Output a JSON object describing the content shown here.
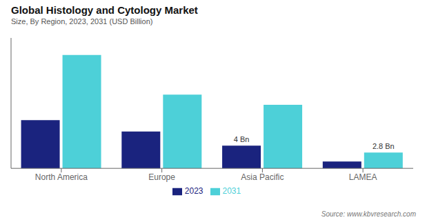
{
  "chart_data": {
    "type": "bar",
    "title": "Global  Histology and Cytology Market",
    "subtitle": "Size, By Region, 2023, 2031 (USD Billion)",
    "categories": [
      "North America",
      "Europe",
      "Asia Pacific",
      "LAMEA"
    ],
    "series": [
      {
        "name": "2023",
        "color": "#1a237e",
        "values": [
          8.5,
          6.5,
          4.0,
          1.2
        ]
      },
      {
        "name": "2031",
        "color": "#4dd0d8",
        "values": [
          20.0,
          13.0,
          11.2,
          2.8
        ]
      }
    ],
    "annotations": [
      {
        "text": "4 Bn",
        "category": "Asia Pacific",
        "series": "2023"
      },
      {
        "text": "2.8 Bn",
        "category": "LAMEA",
        "series": "2031"
      }
    ],
    "source": "Source: www.kbvresearch.com",
    "ylim": [
      0,
      23
    ],
    "yticks": [],
    "grid": false,
    "legend": "bottom",
    "tick_labels": "x"
  }
}
